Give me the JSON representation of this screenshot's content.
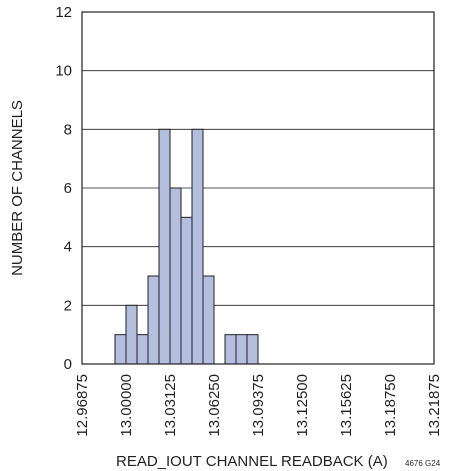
{
  "chart_data": {
    "type": "bar",
    "subtype": "histogram",
    "xlabel": "READ_IOUT CHANNEL READBACK (A)",
    "ylabel": "NUMBER OF CHANNELS",
    "figure_code": "4676 G24",
    "xlim": [
      12.96875,
      13.21875
    ],
    "ylim": [
      0,
      12
    ],
    "bin_width": 0.0078125,
    "x_ticks": [
      "12.96875",
      "13.00000",
      "13.03125",
      "13.06250",
      "13.09375",
      "13.12500",
      "13.15625",
      "13.18750",
      "13.21875"
    ],
    "y_ticks": [
      "0",
      "2",
      "4",
      "6",
      "8",
      "10",
      "12"
    ],
    "bins": [
      {
        "x": 12.9921875,
        "count": 1
      },
      {
        "x": 13.0,
        "count": 2
      },
      {
        "x": 13.0078125,
        "count": 1
      },
      {
        "x": 13.015625,
        "count": 3
      },
      {
        "x": 13.0234375,
        "count": 8
      },
      {
        "x": 13.03125,
        "count": 6
      },
      {
        "x": 13.0390625,
        "count": 5
      },
      {
        "x": 13.046875,
        "count": 8
      },
      {
        "x": 13.0546875,
        "count": 3
      },
      {
        "x": 13.0703125,
        "count": 1
      },
      {
        "x": 13.078125,
        "count": 1
      },
      {
        "x": 13.0859375,
        "count": 1
      }
    ],
    "grid": "horizontal",
    "colors": {
      "bar_fill": "#b4bfe0",
      "bar_stroke": "#231f20",
      "axis": "#231f20",
      "grid": "#231f20"
    }
  }
}
